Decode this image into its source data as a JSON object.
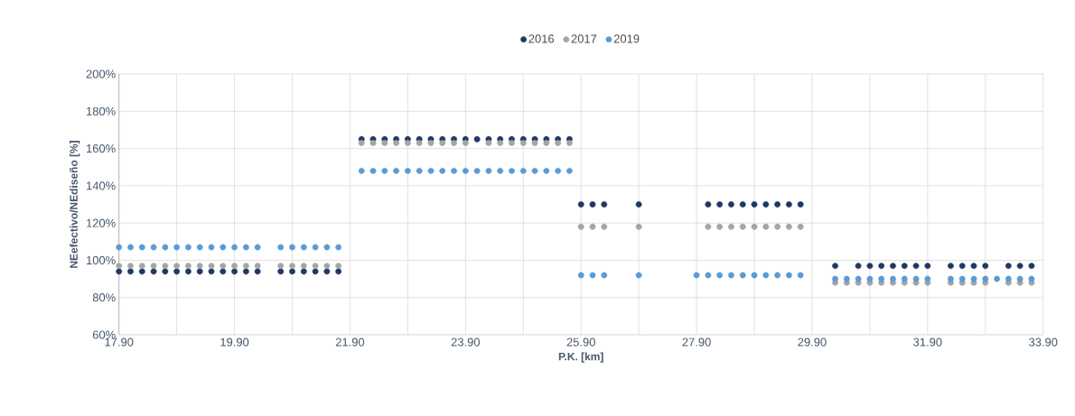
{
  "chart_data": {
    "type": "scatter",
    "xlabel": "P.K. [km]",
    "ylabel": "NEefectivo/NEdiseño [%]",
    "marker": "circle",
    "grid": true,
    "legend": "top",
    "xlim": [
      17.9,
      33.9
    ],
    "ylim": [
      60,
      200
    ],
    "xticks": [
      {
        "value": 17.9,
        "label": "17.90"
      },
      {
        "value": 18.9,
        "label": null
      },
      {
        "value": 19.9,
        "label": "19.90"
      },
      {
        "value": 20.9,
        "label": null
      },
      {
        "value": 21.9,
        "label": "21.90"
      },
      {
        "value": 22.9,
        "label": null
      },
      {
        "value": 23.9,
        "label": "23.90"
      },
      {
        "value": 24.9,
        "label": null
      },
      {
        "value": 25.9,
        "label": "25.90"
      },
      {
        "value": 26.9,
        "label": null
      },
      {
        "value": 27.9,
        "label": "27.90"
      },
      {
        "value": 28.9,
        "label": null
      },
      {
        "value": 29.9,
        "label": "29.90"
      },
      {
        "value": 30.9,
        "label": null
      },
      {
        "value": 31.9,
        "label": "31.90"
      },
      {
        "value": 32.9,
        "label": null
      },
      {
        "value": 33.9,
        "label": "33.90"
      }
    ],
    "yticks": [
      {
        "value": 60,
        "label": "60%"
      },
      {
        "value": 80,
        "label": "80%"
      },
      {
        "value": 100,
        "label": "100%"
      },
      {
        "value": 120,
        "label": "120%"
      },
      {
        "value": 140,
        "label": "140%"
      },
      {
        "value": 160,
        "label": "160%"
      },
      {
        "value": 180,
        "label": "180%"
      },
      {
        "value": 200,
        "label": "200%"
      }
    ],
    "series": [
      {
        "name": "2016",
        "color": "#1f3864",
        "x": [
          17.9,
          18.1,
          18.3,
          18.5,
          18.7,
          18.9,
          19.1,
          19.3,
          19.5,
          19.7,
          19.9,
          20.1,
          20.3,
          20.7,
          20.9,
          21.1,
          21.3,
          21.5,
          21.7,
          22.1,
          22.3,
          22.5,
          22.7,
          22.9,
          23.1,
          23.3,
          23.5,
          23.7,
          23.9,
          24.1,
          24.3,
          24.5,
          24.7,
          24.9,
          25.1,
          25.3,
          25.5,
          25.7,
          25.9,
          26.1,
          26.3,
          26.9,
          28.1,
          28.3,
          28.5,
          28.7,
          28.9,
          29.1,
          29.3,
          29.5,
          29.7,
          30.3,
          30.7,
          30.9,
          31.1,
          31.3,
          31.5,
          31.7,
          31.9,
          32.3,
          32.5,
          32.7,
          32.9,
          33.3,
          33.5,
          33.7
        ],
        "values": [
          94,
          94,
          94,
          94,
          94,
          94,
          94,
          94,
          94,
          94,
          94,
          94,
          94,
          94,
          94,
          94,
          94,
          94,
          94,
          165,
          165,
          165,
          165,
          165,
          165,
          165,
          165,
          165,
          165,
          165,
          165,
          165,
          165,
          165,
          165,
          165,
          165,
          165,
          130,
          130,
          130,
          130,
          130,
          130,
          130,
          130,
          130,
          130,
          130,
          130,
          130,
          97,
          97,
          97,
          97,
          97,
          97,
          97,
          97,
          97,
          97,
          97,
          97,
          97,
          97,
          97
        ]
      },
      {
        "name": "2017",
        "color": "#a5a5a5",
        "x": [
          17.9,
          18.1,
          18.3,
          18.5,
          18.7,
          18.9,
          19.1,
          19.3,
          19.5,
          19.7,
          19.9,
          20.1,
          20.3,
          20.7,
          20.9,
          21.1,
          21.3,
          21.5,
          21.7,
          22.1,
          22.3,
          22.5,
          22.7,
          22.9,
          23.1,
          23.3,
          23.5,
          23.7,
          23.9,
          24.3,
          24.5,
          24.7,
          24.9,
          25.1,
          25.3,
          25.5,
          25.7,
          25.9,
          26.1,
          26.3,
          26.9,
          28.1,
          28.3,
          28.5,
          28.7,
          28.9,
          29.1,
          29.3,
          29.5,
          29.7,
          30.3,
          30.5,
          30.7,
          30.9,
          31.1,
          31.3,
          31.5,
          31.7,
          31.9,
          32.3,
          32.5,
          32.7,
          32.9,
          33.3,
          33.5,
          33.7
        ],
        "values": [
          97,
          97,
          97,
          97,
          97,
          97,
          97,
          97,
          97,
          97,
          97,
          97,
          97,
          97,
          97,
          97,
          97,
          97,
          97,
          163,
          163,
          163,
          163,
          163,
          163,
          163,
          163,
          163,
          163,
          163,
          163,
          163,
          163,
          163,
          163,
          163,
          163,
          118,
          118,
          118,
          118,
          118,
          118,
          118,
          118,
          118,
          118,
          118,
          118,
          118,
          88,
          88,
          88,
          88,
          88,
          88,
          88,
          88,
          88,
          88,
          88,
          88,
          88,
          88,
          88,
          88
        ]
      },
      {
        "name": "2019",
        "color": "#5b9bd5",
        "x": [
          17.9,
          18.1,
          18.3,
          18.5,
          18.7,
          18.9,
          19.1,
          19.3,
          19.5,
          19.7,
          19.9,
          20.1,
          20.3,
          20.7,
          20.9,
          21.1,
          21.3,
          21.5,
          21.7,
          22.1,
          22.3,
          22.5,
          22.7,
          22.9,
          23.1,
          23.3,
          23.5,
          23.7,
          23.9,
          24.1,
          24.3,
          24.5,
          24.7,
          24.9,
          25.1,
          25.3,
          25.5,
          25.7,
          25.9,
          26.1,
          26.3,
          26.9,
          27.9,
          28.1,
          28.3,
          28.5,
          28.7,
          28.9,
          29.1,
          29.3,
          29.5,
          29.7,
          30.3,
          30.5,
          30.7,
          30.9,
          31.1,
          31.3,
          31.5,
          31.7,
          31.9,
          32.3,
          32.5,
          32.7,
          32.9,
          33.1,
          33.3,
          33.5,
          33.7
        ],
        "values": [
          107,
          107,
          107,
          107,
          107,
          107,
          107,
          107,
          107,
          107,
          107,
          107,
          107,
          107,
          107,
          107,
          107,
          107,
          107,
          148,
          148,
          148,
          148,
          148,
          148,
          148,
          148,
          148,
          148,
          148,
          148,
          148,
          148,
          148,
          148,
          148,
          148,
          148,
          92,
          92,
          92,
          92,
          92,
          92,
          92,
          92,
          92,
          92,
          92,
          92,
          92,
          92,
          90,
          90,
          90,
          90,
          90,
          90,
          90,
          90,
          90,
          90,
          90,
          90,
          90,
          90,
          90,
          90,
          90
        ]
      }
    ]
  }
}
